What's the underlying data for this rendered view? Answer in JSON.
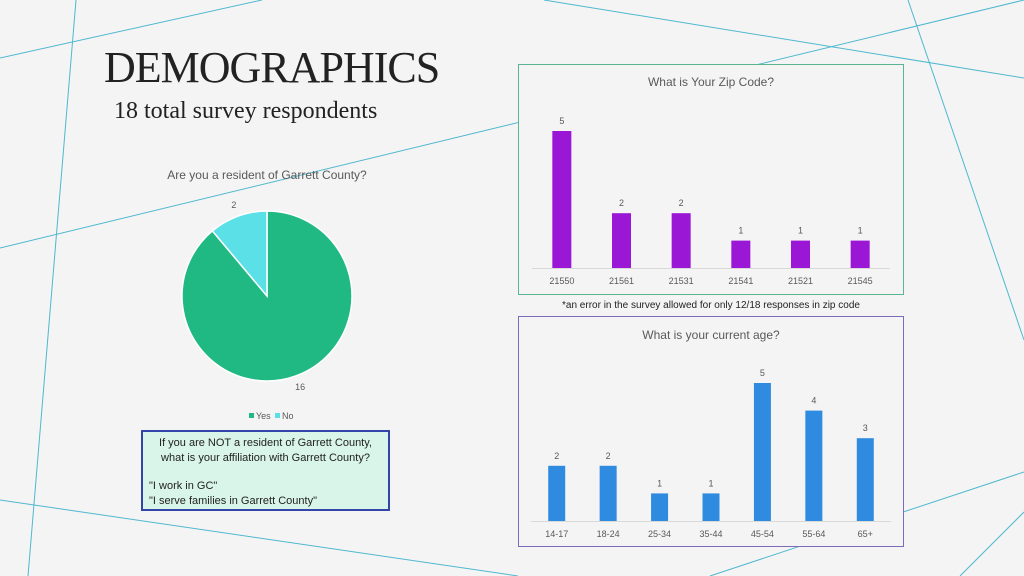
{
  "header": {
    "title": "DEMOGRAPHICS",
    "subtitle": "18 total survey respondents"
  },
  "note": "*an error in the survey allowed for only 12/18 responses in zip code",
  "affiliation_box": {
    "question": "If you are NOT a resident of Garrett County, what is your affiliation with Garrett County?",
    "answers": [
      "\"I work in GC\"",
      "\"I serve families in Garrett County\""
    ]
  },
  "colors": {
    "pie_yes": "#20b984",
    "pie_no": "#5be0e8",
    "zip_bars": "#9b17d6",
    "age_bars": "#2e8be0",
    "zip_border": "#5bb591",
    "age_border": "#7e6bb8",
    "deco_lines": "#4fb8cf"
  },
  "chart_data": [
    {
      "type": "pie",
      "title": "Are you a resident of Garrett County?",
      "categories": [
        "Yes",
        "No"
      ],
      "values": [
        16,
        2
      ],
      "legend": "bottom"
    },
    {
      "type": "bar",
      "title": "What is Your Zip Code?",
      "categories": [
        "21550",
        "21561",
        "21531",
        "21541",
        "21521",
        "21545"
      ],
      "values": [
        5,
        2,
        2,
        1,
        1,
        1
      ],
      "ylim": [
        0,
        5
      ],
      "grid": false
    },
    {
      "type": "bar",
      "title": "What is your current age?",
      "categories": [
        "14-17",
        "18-24",
        "25-34",
        "35-44",
        "45-54",
        "55-64",
        "65+"
      ],
      "values": [
        2,
        2,
        1,
        1,
        5,
        4,
        3
      ],
      "ylim": [
        0,
        5
      ],
      "grid": false
    }
  ]
}
